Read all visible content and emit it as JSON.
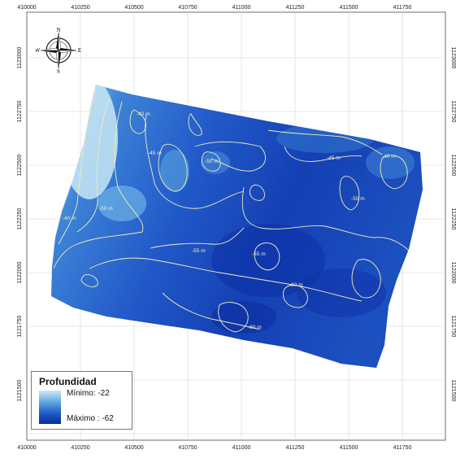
{
  "map": {
    "x_ticks": [
      "410000",
      "410250",
      "410500",
      "410750",
      "411000",
      "411250",
      "411500",
      "411750"
    ],
    "y_ticks": [
      "1123000",
      "1122750",
      "1122500",
      "1122250",
      "1122000",
      "1121750",
      "1121500"
    ],
    "contour_labels": [
      "-40 m",
      "-45 m",
      "-50 m",
      "-55 m",
      "-60 m",
      "-50 m",
      "-45 m",
      "-40 m",
      "-55 m",
      "-60 m",
      "-50 m",
      "-40 m"
    ]
  },
  "compass": {
    "n": "N",
    "s": "S",
    "e": "E",
    "w": "W"
  },
  "legend": {
    "title": "Profundidad",
    "min_label": "Mínimo: -22",
    "max_label": "Máximo : -62",
    "ramp_colors": [
      "#cfe6f6",
      "#5fa7de",
      "#1e59c2",
      "#0a2b9a"
    ]
  },
  "colors": {
    "shallow": "#bfe1f3",
    "mid": "#3f86d6",
    "deep": "#0b2fa3",
    "contour": "#f1eeb4"
  }
}
